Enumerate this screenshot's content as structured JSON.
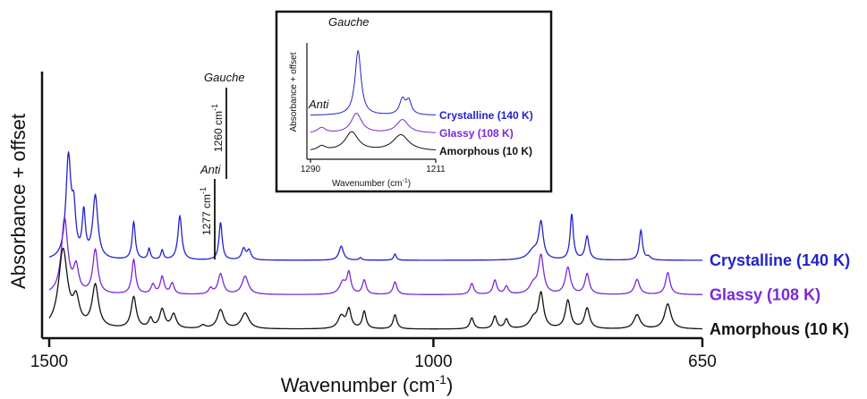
{
  "chart_data": [
    {
      "type": "line",
      "title": "",
      "xlabel": "Wavenumber (cm",
      "xlabel_sup": "-1",
      "xlabel_end": ")",
      "ylabel": "Absorbance + offset",
      "xlim": [
        1500,
        650
      ],
      "x_reversed": true,
      "x_ticks": [
        1500,
        1000,
        650
      ],
      "y_ticks": [],
      "grid": false,
      "legend": "series labels at right end of each trace",
      "series": [
        {
          "name": "Crystalline (140 K)",
          "color": "#2323c8",
          "baseline": 2.2,
          "peaks": [
            {
              "x": 1475,
              "h": 3.2,
              "w": 4
            },
            {
              "x": 1468,
              "h": 1.3,
              "w": 3
            },
            {
              "x": 1455,
              "h": 1.4,
              "w": 2.5
            },
            {
              "x": 1440,
              "h": 2.0,
              "w": 4
            },
            {
              "x": 1390,
              "h": 1.2,
              "w": 2.5
            },
            {
              "x": 1370,
              "h": 0.35,
              "w": 2
            },
            {
              "x": 1353,
              "h": 0.3,
              "w": 2
            },
            {
              "x": 1330,
              "h": 1.4,
              "w": 3
            },
            {
              "x": 1277,
              "h": 1.2,
              "w": 2.5
            },
            {
              "x": 1247,
              "h": 0.35,
              "w": 3
            },
            {
              "x": 1240,
              "h": 0.3,
              "w": 3
            },
            {
              "x": 1120,
              "h": 0.45,
              "w": 3.5
            },
            {
              "x": 1095,
              "h": 0.08,
              "w": 2
            },
            {
              "x": 1050,
              "h": 0.2,
              "w": 2
            },
            {
              "x": 870,
              "h": 0.3,
              "w": 8
            },
            {
              "x": 860,
              "h": 1.15,
              "w": 3.5
            },
            {
              "x": 820,
              "h": 1.45,
              "w": 2.5
            },
            {
              "x": 800,
              "h": 0.75,
              "w": 3
            },
            {
              "x": 730,
              "h": 0.95,
              "w": 2.5
            },
            {
              "x": 720,
              "h": 0.1,
              "w": 3
            }
          ]
        },
        {
          "name": "Glassy (108 K)",
          "color": "#7a28d6",
          "baseline": 1.1,
          "peaks": [
            {
              "x": 1480,
              "h": 2.4,
              "w": 5
            },
            {
              "x": 1465,
              "h": 0.8,
              "w": 4
            },
            {
              "x": 1440,
              "h": 1.4,
              "w": 4
            },
            {
              "x": 1390,
              "h": 1.1,
              "w": 3
            },
            {
              "x": 1365,
              "h": 0.3,
              "w": 3
            },
            {
              "x": 1353,
              "h": 0.55,
              "w": 3
            },
            {
              "x": 1340,
              "h": 0.35,
              "w": 3
            },
            {
              "x": 1290,
              "h": 0.18,
              "w": 3
            },
            {
              "x": 1277,
              "h": 0.65,
              "w": 4
            },
            {
              "x": 1245,
              "h": 0.58,
              "w": 5
            },
            {
              "x": 1118,
              "h": 0.38,
              "w": 5
            },
            {
              "x": 1110,
              "h": 0.65,
              "w": 3
            },
            {
              "x": 1090,
              "h": 0.45,
              "w": 3
            },
            {
              "x": 1050,
              "h": 0.4,
              "w": 3
            },
            {
              "x": 950,
              "h": 0.35,
              "w": 3
            },
            {
              "x": 920,
              "h": 0.45,
              "w": 3
            },
            {
              "x": 905,
              "h": 0.25,
              "w": 3
            },
            {
              "x": 870,
              "h": 0.3,
              "w": 6
            },
            {
              "x": 860,
              "h": 1.2,
              "w": 4
            },
            {
              "x": 825,
              "h": 0.85,
              "w": 4
            },
            {
              "x": 800,
              "h": 0.65,
              "w": 3.5
            },
            {
              "x": 735,
              "h": 0.48,
              "w": 4
            },
            {
              "x": 695,
              "h": 0.7,
              "w": 3.5
            }
          ]
        },
        {
          "name": "Amorphous (10 K)",
          "color": "#111111",
          "baseline": 0.0,
          "peaks": [
            {
              "x": 1482,
              "h": 2.5,
              "w": 7
            },
            {
              "x": 1465,
              "h": 0.8,
              "w": 5
            },
            {
              "x": 1440,
              "h": 1.35,
              "w": 5
            },
            {
              "x": 1390,
              "h": 1.0,
              "w": 4
            },
            {
              "x": 1368,
              "h": 0.3,
              "w": 3
            },
            {
              "x": 1353,
              "h": 0.6,
              "w": 4
            },
            {
              "x": 1338,
              "h": 0.45,
              "w": 4
            },
            {
              "x": 1300,
              "h": 0.1,
              "w": 4
            },
            {
              "x": 1277,
              "h": 0.6,
              "w": 5
            },
            {
              "x": 1245,
              "h": 0.5,
              "w": 6
            },
            {
              "x": 1120,
              "h": 0.4,
              "w": 5
            },
            {
              "x": 1110,
              "h": 0.6,
              "w": 3.5
            },
            {
              "x": 1090,
              "h": 0.55,
              "w": 3
            },
            {
              "x": 1050,
              "h": 0.45,
              "w": 3
            },
            {
              "x": 950,
              "h": 0.35,
              "w": 3
            },
            {
              "x": 920,
              "h": 0.4,
              "w": 3
            },
            {
              "x": 905,
              "h": 0.3,
              "w": 3
            },
            {
              "x": 870,
              "h": 0.3,
              "w": 6
            },
            {
              "x": 860,
              "h": 1.1,
              "w": 4
            },
            {
              "x": 825,
              "h": 0.9,
              "w": 4
            },
            {
              "x": 800,
              "h": 0.65,
              "w": 4
            },
            {
              "x": 735,
              "h": 0.45,
              "w": 5
            },
            {
              "x": 695,
              "h": 0.8,
              "w": 5
            }
          ]
        }
      ],
      "annotations": {
        "gauche": "Gauche",
        "anti": "Anti",
        "gauche_position": "1260 cm",
        "anti_position": "1277 cm",
        "unit_sup": "-1"
      }
    },
    {
      "type": "line",
      "title": "",
      "xlabel": "Wavenumber (cm",
      "xlabel_sup": "-1",
      "xlabel_end": ")",
      "ylabel": "Absorbance + offset",
      "xlim": [
        1290,
        1211
      ],
      "x_reversed": true,
      "x_ticks": [
        1290,
        1211
      ],
      "grid": false,
      "legend": "series labels at right end of each trace",
      "series": [
        {
          "name": "Crystalline (140 K)",
          "color": "#2323c8",
          "baseline": 2.0,
          "peaks": [
            {
              "x": 1260,
              "h": 3.6,
              "w": 2.3
            },
            {
              "x": 1232,
              "h": 0.85,
              "w": 2.2
            },
            {
              "x": 1228,
              "h": 0.75,
              "w": 2
            }
          ]
        },
        {
          "name": "Glassy (108 K)",
          "color": "#7a28d6",
          "baseline": 1.0,
          "peaks": [
            {
              "x": 1283,
              "h": 0.3,
              "w": 3
            },
            {
              "x": 1261,
              "h": 1.1,
              "w": 4
            },
            {
              "x": 1232,
              "h": 0.75,
              "w": 4.5
            }
          ]
        },
        {
          "name": "Amorphous (10 K)",
          "color": "#111111",
          "baseline": 0.0,
          "peaks": [
            {
              "x": 1283,
              "h": 0.25,
              "w": 3
            },
            {
              "x": 1264,
              "h": 1.05,
              "w": 5
            },
            {
              "x": 1233,
              "h": 0.9,
              "w": 6
            }
          ]
        }
      ],
      "annotations": {
        "gauche": "Gauche",
        "anti": "Anti"
      }
    }
  ]
}
